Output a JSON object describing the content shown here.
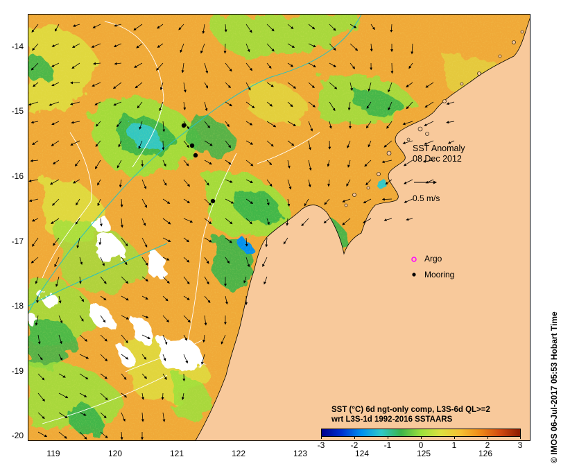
{
  "map": {
    "y_ticks": [
      "-14",
      "-15",
      "-16",
      "-17",
      "-18",
      "-19",
      "-20"
    ],
    "x_ticks": [
      "119",
      "120",
      "121",
      "122",
      "123",
      "124",
      "125",
      "126"
    ],
    "title_line1": "SST Anomaly",
    "title_line2": "08 Dec 2012",
    "scale_label": "0.5 m/s",
    "legend": {
      "argo_label": "Argo",
      "mooring_label": "Mooring",
      "argo_color": "#ff00ff",
      "mooring_color": "#000000"
    },
    "note_line1": "SST (°C) 6d ngt-only comp, L3S-6d QL>=2",
    "note_line2": "wrt L3S-1d 1992-2016 SSTAARS",
    "colorbar": {
      "ticks": [
        "-3",
        "-2",
        "-1",
        "0",
        "1",
        "2",
        "3"
      ],
      "colors": [
        "#00008b",
        "#0030d0",
        "#0090f0",
        "#30c8c8",
        "#3cb44a",
        "#9be03c",
        "#dde040",
        "#f6c032",
        "#f08a18",
        "#d24a10",
        "#8b1a00"
      ]
    },
    "credit": "© IMOS 06-Jul-2017 05:53 Hobart Time",
    "colors": {
      "land": "#f8c99b",
      "warm": "#f0a938",
      "neutral": "#9be03c",
      "cool": "#3cb44a",
      "cold": "#29b9b0",
      "contour": "#ffffff",
      "isobath": "#27c2c2",
      "cloud": "#ffffff"
    }
  }
}
